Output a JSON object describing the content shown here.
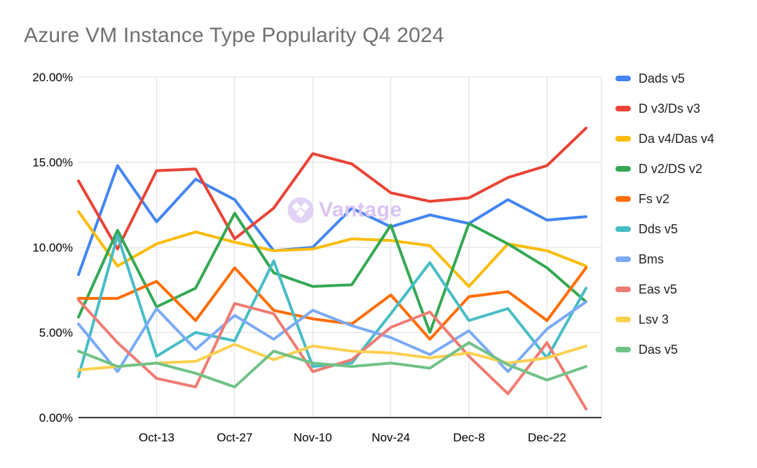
{
  "title": "Azure VM Instance Type Popularity Q4 2024",
  "watermark": {
    "text": "Vantage",
    "logo": "vantage-diamonds-logo",
    "color": "#d9c4f2",
    "circle_color": "#e2d2f6"
  },
  "axis": {
    "y_tick_labels": [
      "20.00%",
      "15.00%",
      "10.00%",
      "5.00%",
      "0.00%"
    ],
    "x_tick_labels": [
      "Oct-13",
      "Oct-27",
      "Nov-10",
      "Nov-24",
      "Dec-8",
      "Dec-22"
    ]
  },
  "chart_data": {
    "type": "line",
    "title": "Azure VM Instance Type Popularity Q4 2024",
    "xlabel": "",
    "ylabel": "",
    "ylim": [
      0,
      20
    ],
    "y_ticks": [
      0,
      5,
      10,
      15,
      20
    ],
    "y_tick_format": "percent_2dp",
    "grid": true,
    "legend_position": "right",
    "categories": [
      "Sep-29",
      "Oct-6",
      "Oct-13",
      "Oct-20",
      "Oct-27",
      "Nov-3",
      "Nov-10",
      "Nov-17",
      "Nov-24",
      "Dec-1",
      "Dec-8",
      "Dec-15",
      "Dec-22",
      "Dec-29"
    ],
    "x_tick_indices": [
      2,
      4,
      6,
      8,
      10,
      12
    ],
    "x_tick_labels": [
      "Oct-13",
      "Oct-27",
      "Nov-10",
      "Nov-24",
      "Dec-8",
      "Dec-22"
    ],
    "series": [
      {
        "name": "Dads v5",
        "color": "#4285F4",
        "values": [
          8.4,
          14.8,
          11.5,
          14.0,
          12.8,
          9.8,
          10.0,
          12.3,
          11.2,
          11.9,
          11.4,
          12.8,
          11.6,
          11.8
        ]
      },
      {
        "name": "D v3/Ds v3",
        "color": "#EA4335",
        "values": [
          13.9,
          9.9,
          14.5,
          14.6,
          10.5,
          12.3,
          15.5,
          14.9,
          13.2,
          12.7,
          12.9,
          14.1,
          14.8,
          17.0
        ]
      },
      {
        "name": "Da v4/Das v4",
        "color": "#FBBC04",
        "values": [
          12.1,
          8.9,
          10.2,
          10.9,
          10.3,
          9.8,
          9.9,
          10.5,
          10.4,
          10.1,
          7.7,
          10.2,
          9.8,
          8.9
        ]
      },
      {
        "name": "D v2/DS v2",
        "color": "#34A853",
        "values": [
          5.9,
          11.0,
          6.5,
          7.6,
          12.0,
          8.5,
          7.7,
          7.8,
          11.3,
          5.0,
          11.4,
          10.2,
          8.8,
          6.8
        ]
      },
      {
        "name": "Fs v2",
        "color": "#FF6D01",
        "values": [
          7.0,
          7.0,
          8.0,
          5.7,
          8.8,
          6.3,
          5.8,
          5.5,
          7.2,
          4.6,
          7.1,
          7.4,
          5.7,
          8.8
        ]
      },
      {
        "name": "Dds v5",
        "color": "#46BDC6",
        "values": [
          2.4,
          10.7,
          3.6,
          5.0,
          4.5,
          9.2,
          3.0,
          3.2,
          6.1,
          9.1,
          5.7,
          6.4,
          3.5,
          7.6
        ]
      },
      {
        "name": "Bms",
        "color": "#7BAAF7",
        "values": [
          5.5,
          2.7,
          6.4,
          4.0,
          6.0,
          4.6,
          6.3,
          5.4,
          4.7,
          3.7,
          5.1,
          2.7,
          5.2,
          6.8
        ]
      },
      {
        "name": "Eas v5",
        "color": "#F07B72",
        "values": [
          6.9,
          4.4,
          2.3,
          1.8,
          6.7,
          6.1,
          2.7,
          3.4,
          5.3,
          6.2,
          3.6,
          1.4,
          4.4,
          0.5
        ]
      },
      {
        "name": "Lsv 3",
        "color": "#FCD04F",
        "values": [
          2.8,
          3.0,
          3.2,
          3.3,
          4.3,
          3.4,
          4.2,
          3.9,
          3.8,
          3.5,
          3.8,
          3.2,
          3.5,
          4.2
        ]
      },
      {
        "name": "Das v5",
        "color": "#71C287",
        "values": [
          3.9,
          3.0,
          3.2,
          2.6,
          1.8,
          3.9,
          3.2,
          3.0,
          3.2,
          2.9,
          4.4,
          3.1,
          2.2,
          3.0
        ]
      }
    ]
  },
  "style": {
    "grid_color": "#dddddd",
    "axis_color": "#333333",
    "tick_label_color": "#000000",
    "title_color": "#707070",
    "legend_text_color": "#202124"
  }
}
